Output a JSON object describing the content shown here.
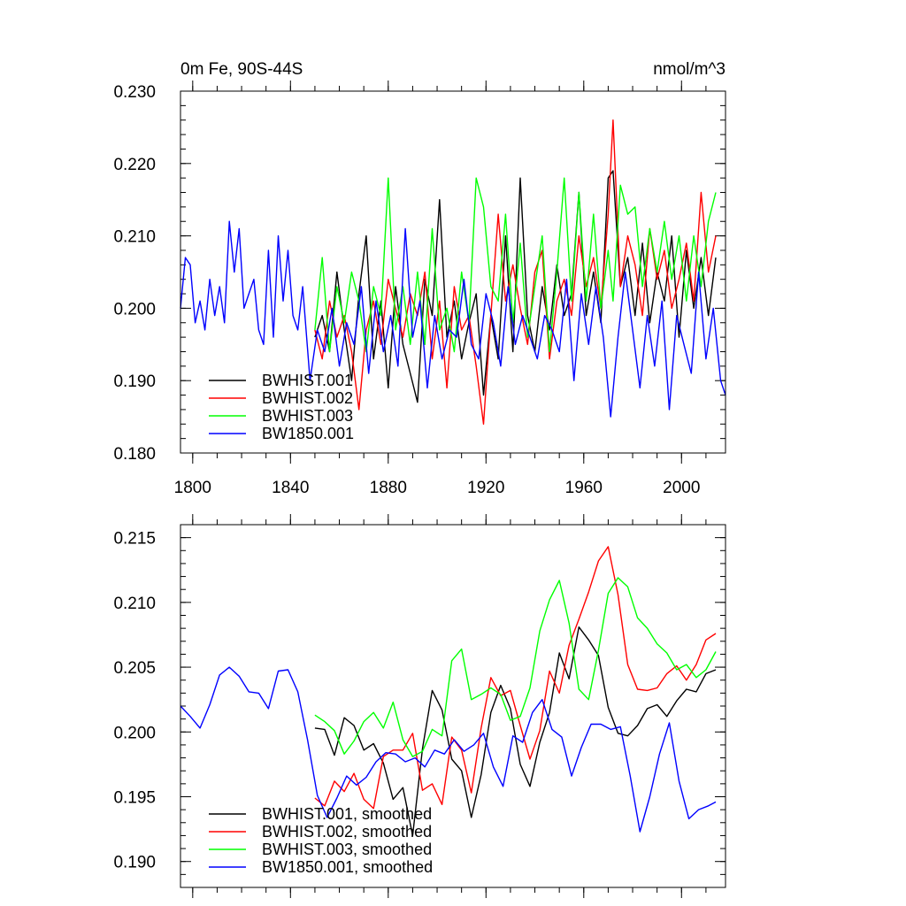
{
  "colors": {
    "BWHIST.001": "#000000",
    "BWHIST.002": "#ff0000",
    "BWHIST.003": "#00ff00",
    "BW1850.001": "#0000ff"
  },
  "chart_data": [
    {
      "type": "line",
      "title": "0m Fe, 90S-44S",
      "units": "nmol/m^3",
      "xlim": [
        1795,
        2018
      ],
      "ylim": [
        0.18,
        0.23
      ],
      "x_ticks": [
        1800,
        1840,
        1880,
        1920,
        1960,
        2000
      ],
      "x_tick_labels": [
        "1800",
        "1840",
        "1880",
        "1920",
        "1960",
        "2000"
      ],
      "y_ticks": [
        0.18,
        0.19,
        0.2,
        0.21,
        0.22,
        0.23
      ],
      "y_tick_labels": [
        "0.180",
        "0.190",
        "0.200",
        "0.210",
        "0.220",
        "0.230"
      ],
      "legend_position": "bottom-left",
      "series": [
        {
          "name": "BWHIST.001",
          "x": [
            1850,
            1853,
            1856,
            1859,
            1862,
            1865,
            1868,
            1871,
            1874,
            1877,
            1880,
            1883,
            1886,
            1889,
            1892,
            1895,
            1898,
            1901,
            1904,
            1907,
            1910,
            1913,
            1916,
            1919,
            1922,
            1925,
            1928,
            1931,
            1934,
            1937,
            1940,
            1943,
            1946,
            1949,
            1952,
            1955,
            1958,
            1961,
            1964,
            1967,
            1970,
            1972,
            1975,
            1978,
            1981,
            1984,
            1987,
            1990,
            1993,
            1996,
            1999,
            2002,
            2005,
            2008,
            2011,
            2014
          ],
          "values": [
            0.196,
            0.199,
            0.194,
            0.205,
            0.197,
            0.19,
            0.202,
            0.21,
            0.193,
            0.201,
            0.189,
            0.203,
            0.195,
            0.191,
            0.187,
            0.204,
            0.199,
            0.215,
            0.196,
            0.201,
            0.193,
            0.198,
            0.202,
            0.188,
            0.199,
            0.193,
            0.21,
            0.194,
            0.218,
            0.199,
            0.194,
            0.203,
            0.197,
            0.206,
            0.199,
            0.202,
            0.216,
            0.199,
            0.205,
            0.198,
            0.218,
            0.219,
            0.203,
            0.207,
            0.199,
            0.209,
            0.198,
            0.205,
            0.201,
            0.21,
            0.196,
            0.208,
            0.2,
            0.207,
            0.199,
            0.207
          ]
        },
        {
          "name": "BWHIST.002",
          "x": [
            1850,
            1853,
            1856,
            1859,
            1862,
            1865,
            1868,
            1871,
            1874,
            1877,
            1880,
            1883,
            1886,
            1889,
            1892,
            1895,
            1898,
            1901,
            1904,
            1907,
            1910,
            1913,
            1916,
            1919,
            1922,
            1925,
            1928,
            1931,
            1934,
            1937,
            1940,
            1943,
            1946,
            1949,
            1952,
            1955,
            1958,
            1961,
            1964,
            1967,
            1970,
            1972,
            1975,
            1978,
            1981,
            1984,
            1987,
            1990,
            1993,
            1996,
            1999,
            2002,
            2005,
            2008,
            2011,
            2014
          ],
          "values": [
            0.197,
            0.193,
            0.201,
            0.196,
            0.199,
            0.194,
            0.186,
            0.197,
            0.201,
            0.195,
            0.204,
            0.2,
            0.196,
            0.202,
            0.199,
            0.205,
            0.193,
            0.201,
            0.189,
            0.203,
            0.197,
            0.199,
            0.192,
            0.184,
            0.199,
            0.213,
            0.201,
            0.206,
            0.2,
            0.195,
            0.205,
            0.208,
            0.193,
            0.201,
            0.204,
            0.199,
            0.21,
            0.203,
            0.207,
            0.2,
            0.213,
            0.226,
            0.203,
            0.21,
            0.206,
            0.199,
            0.211,
            0.204,
            0.208,
            0.2,
            0.204,
            0.209,
            0.201,
            0.216,
            0.205,
            0.21
          ]
        },
        {
          "name": "BWHIST.003",
          "x": [
            1850,
            1853,
            1856,
            1859,
            1862,
            1865,
            1868,
            1871,
            1874,
            1877,
            1880,
            1883,
            1886,
            1889,
            1892,
            1895,
            1898,
            1901,
            1904,
            1907,
            1910,
            1913,
            1916,
            1919,
            1922,
            1925,
            1928,
            1931,
            1934,
            1937,
            1940,
            1943,
            1946,
            1949,
            1952,
            1955,
            1958,
            1961,
            1964,
            1967,
            1970,
            1972,
            1975,
            1978,
            1981,
            1984,
            1987,
            1990,
            1993,
            1996,
            1999,
            2002,
            2005,
            2008,
            2011,
            2014
          ],
          "values": [
            0.197,
            0.207,
            0.194,
            0.203,
            0.198,
            0.205,
            0.201,
            0.194,
            0.203,
            0.199,
            0.218,
            0.197,
            0.203,
            0.195,
            0.205,
            0.195,
            0.211,
            0.197,
            0.2,
            0.194,
            0.205,
            0.198,
            0.218,
            0.214,
            0.203,
            0.201,
            0.213,
            0.198,
            0.209,
            0.196,
            0.203,
            0.21,
            0.194,
            0.205,
            0.218,
            0.201,
            0.216,
            0.201,
            0.213,
            0.2,
            0.208,
            0.201,
            0.217,
            0.213,
            0.214,
            0.203,
            0.211,
            0.205,
            0.212,
            0.204,
            0.21,
            0.201,
            0.21,
            0.203,
            0.212,
            0.216
          ]
        },
        {
          "name": "BW1850.001",
          "x": [
            1795,
            1797,
            1799,
            1801,
            1803,
            1805,
            1807,
            1809,
            1811,
            1813,
            1815,
            1817,
            1819,
            1821,
            1823,
            1825,
            1827,
            1829,
            1831,
            1833,
            1835,
            1837,
            1839,
            1841,
            1843,
            1845,
            1848,
            1851,
            1854,
            1857,
            1860,
            1863,
            1866,
            1869,
            1872,
            1875,
            1878,
            1881,
            1884,
            1887,
            1890,
            1893,
            1896,
            1899,
            1902,
            1905,
            1908,
            1911,
            1914,
            1917,
            1920,
            1923,
            1926,
            1929,
            1932,
            1935,
            1938,
            1941,
            1944,
            1947,
            1950,
            1953,
            1956,
            1959,
            1962,
            1965,
            1968,
            1971,
            1974,
            1977,
            1980,
            1983,
            1986,
            1989,
            1992,
            1995,
            1998,
            2001,
            2004,
            2007,
            2010,
            2013,
            2016,
            2018
          ],
          "values": [
            0.2,
            0.207,
            0.206,
            0.198,
            0.201,
            0.197,
            0.204,
            0.199,
            0.203,
            0.198,
            0.212,
            0.205,
            0.211,
            0.2,
            0.202,
            0.204,
            0.197,
            0.195,
            0.208,
            0.196,
            0.21,
            0.201,
            0.208,
            0.199,
            0.197,
            0.203,
            0.19,
            0.197,
            0.194,
            0.2,
            0.192,
            0.198,
            0.195,
            0.203,
            0.191,
            0.201,
            0.194,
            0.199,
            0.192,
            0.211,
            0.196,
            0.201,
            0.189,
            0.199,
            0.193,
            0.197,
            0.196,
            0.204,
            0.195,
            0.193,
            0.202,
            0.198,
            0.192,
            0.203,
            0.195,
            0.199,
            0.196,
            0.193,
            0.199,
            0.197,
            0.194,
            0.204,
            0.19,
            0.202,
            0.195,
            0.203,
            0.196,
            0.185,
            0.196,
            0.205,
            0.197,
            0.189,
            0.199,
            0.192,
            0.201,
            0.186,
            0.199,
            0.195,
            0.191,
            0.205,
            0.193,
            0.2,
            0.19,
            0.188
          ]
        }
      ]
    },
    {
      "type": "line",
      "xlim": [
        1795,
        2018
      ],
      "ylim": [
        0.188,
        0.216
      ],
      "x_ticks": [
        1800,
        1840,
        1880,
        1920,
        1960,
        2000
      ],
      "y_ticks": [
        0.19,
        0.195,
        0.2,
        0.205,
        0.21,
        0.215
      ],
      "y_tick_labels": [
        "0.190",
        "0.195",
        "0.200",
        "0.205",
        "0.210",
        "0.215"
      ],
      "legend_position": "bottom-left",
      "series": [
        {
          "name": "BWHIST.001, smoothed",
          "x": [
            1850,
            1854,
            1858,
            1862,
            1866,
            1870,
            1874,
            1878,
            1882,
            1886,
            1890,
            1894,
            1898,
            1902,
            1906,
            1910,
            1914,
            1918,
            1922,
            1926,
            1930,
            1934,
            1938,
            1942,
            1946,
            1950,
            1954,
            1958,
            1962,
            1966,
            1970,
            1974,
            1978,
            1982,
            1986,
            1990,
            1994,
            1998,
            2002,
            2006,
            2010,
            2014
          ],
          "values": [
            0.2003,
            0.2002,
            0.1982,
            0.2011,
            0.2005,
            0.1986,
            0.1991,
            0.1976,
            0.1948,
            0.1957,
            0.192,
            0.1987,
            0.2032,
            0.2017,
            0.1979,
            0.197,
            0.1934,
            0.1967,
            0.2015,
            0.2036,
            0.2018,
            0.1975,
            0.1958,
            0.1992,
            0.2015,
            0.2061,
            0.2041,
            0.2081,
            0.2071,
            0.2059,
            0.2019,
            0.1999,
            0.1997,
            0.2005,
            0.2018,
            0.2021,
            0.2012,
            0.2024,
            0.2033,
            0.2031,
            0.2045,
            0.2048
          ]
        },
        {
          "name": "BWHIST.002, smoothed",
          "x": [
            1850,
            1854,
            1858,
            1862,
            1866,
            1870,
            1874,
            1878,
            1882,
            1886,
            1890,
            1894,
            1898,
            1902,
            1906,
            1910,
            1914,
            1918,
            1922,
            1926,
            1930,
            1934,
            1938,
            1942,
            1946,
            1950,
            1954,
            1958,
            1962,
            1966,
            1970,
            1974,
            1978,
            1982,
            1986,
            1990,
            1994,
            1998,
            2002,
            2006,
            2010,
            2014
          ],
          "values": [
            0.1949,
            0.1943,
            0.1962,
            0.1954,
            0.1968,
            0.1948,
            0.1941,
            0.1981,
            0.1986,
            0.1986,
            0.1999,
            0.1955,
            0.196,
            0.1944,
            0.1996,
            0.1986,
            0.1953,
            0.2003,
            0.2042,
            0.2028,
            0.2032,
            0.2005,
            0.1979,
            0.2001,
            0.2047,
            0.203,
            0.2067,
            0.2087,
            0.2108,
            0.2132,
            0.2143,
            0.2106,
            0.2052,
            0.2033,
            0.2032,
            0.2034,
            0.2045,
            0.2051,
            0.204,
            0.2052,
            0.2071,
            0.2076
          ]
        },
        {
          "name": "BWHIST.003, smoothed",
          "x": [
            1850,
            1854,
            1858,
            1862,
            1866,
            1870,
            1874,
            1878,
            1882,
            1886,
            1890,
            1894,
            1898,
            1902,
            1906,
            1910,
            1914,
            1918,
            1922,
            1926,
            1930,
            1934,
            1938,
            1942,
            1946,
            1950,
            1954,
            1958,
            1962,
            1966,
            1970,
            1974,
            1978,
            1982,
            1986,
            1990,
            1994,
            1998,
            2002,
            2006,
            2010,
            2014
          ],
          "values": [
            0.2013,
            0.2008,
            0.2001,
            0.1983,
            0.1993,
            0.2008,
            0.2015,
            0.2003,
            0.2023,
            0.1994,
            0.1981,
            0.1985,
            0.2002,
            0.1997,
            0.2055,
            0.2064,
            0.2025,
            0.2029,
            0.2034,
            0.2029,
            0.2009,
            0.2012,
            0.2034,
            0.2078,
            0.2102,
            0.2117,
            0.2084,
            0.2033,
            0.2025,
            0.2063,
            0.2107,
            0.2119,
            0.2112,
            0.2088,
            0.208,
            0.2068,
            0.2061,
            0.2048,
            0.2052,
            0.2042,
            0.2048,
            0.2062
          ]
        },
        {
          "name": "BW1850.001, smoothed",
          "x": [
            1795,
            1799,
            1803,
            1807,
            1811,
            1815,
            1819,
            1823,
            1827,
            1831,
            1835,
            1839,
            1843,
            1847,
            1851,
            1855,
            1859,
            1863,
            1867,
            1871,
            1875,
            1879,
            1883,
            1887,
            1891,
            1895,
            1899,
            1903,
            1907,
            1911,
            1915,
            1919,
            1923,
            1927,
            1931,
            1935,
            1939,
            1943,
            1947,
            1951,
            1955,
            1959,
            1963,
            1967,
            1971,
            1975,
            1979,
            1983,
            1987,
            1991,
            1995,
            1999,
            2003,
            2007,
            2011,
            2014
          ],
          "values": [
            0.202,
            0.2012,
            0.2003,
            0.2021,
            0.2044,
            0.205,
            0.2043,
            0.2031,
            0.203,
            0.2018,
            0.2047,
            0.2048,
            0.2031,
            0.1994,
            0.1951,
            0.1934,
            0.1949,
            0.1966,
            0.1959,
            0.1965,
            0.1977,
            0.1984,
            0.1983,
            0.1977,
            0.198,
            0.1973,
            0.1986,
            0.1983,
            0.1994,
            0.1985,
            0.199,
            0.1999,
            0.1973,
            0.1958,
            0.1997,
            0.1992,
            0.2015,
            0.2025,
            0.2002,
            0.1996,
            0.1966,
            0.1988,
            0.2006,
            0.2006,
            0.2002,
            0.2004,
            0.1966,
            0.1923,
            0.195,
            0.1983,
            0.2007,
            0.1962,
            0.1933,
            0.194,
            0.1943,
            0.1946
          ]
        }
      ]
    }
  ]
}
